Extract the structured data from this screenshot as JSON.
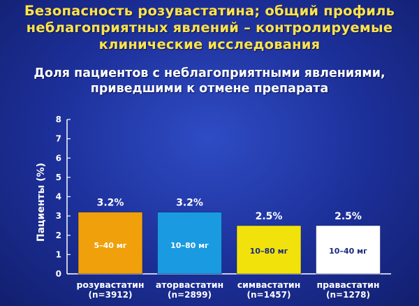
{
  "title_lines": [
    "Безопасность розувастатина; общий профиль",
    "неблагоприятных явлений – контролируемые",
    "клинические исследования"
  ],
  "subtitle_lines": [
    "Доля пациентов с неблагоприятными явлениями,",
    "приведшими к отмене препарата"
  ],
  "chart_data": {
    "type": "bar",
    "ylabel": "Пациенты (%)",
    "ylim": [
      0,
      8
    ],
    "yticks": [
      "0",
      "1",
      "2",
      "3",
      "4",
      "5",
      "6",
      "7",
      "8"
    ],
    "categories": [
      "розувастатин",
      "аторвастатин",
      "симвастатин",
      "правастатин"
    ],
    "sample_sizes": [
      "(n=3912)",
      "(n=2899)",
      "(n=1457)",
      "(n=1278)"
    ],
    "values": [
      3.2,
      3.2,
      2.5,
      2.5
    ],
    "value_labels": [
      "3.2%",
      "3.2%",
      "2.5%",
      "2.5%"
    ],
    "dose_labels": [
      "5–40 мг",
      "10–80 мг",
      "10–80 мг",
      "10–40 мг"
    ],
    "bar_colors": [
      "#f0a00a",
      "#1a9ae0",
      "#f2e20c",
      "#ffffff"
    ],
    "dose_label_colors": [
      "#ffffff",
      "#ffffff",
      "#1a2a80",
      "#1a2a80"
    ]
  }
}
